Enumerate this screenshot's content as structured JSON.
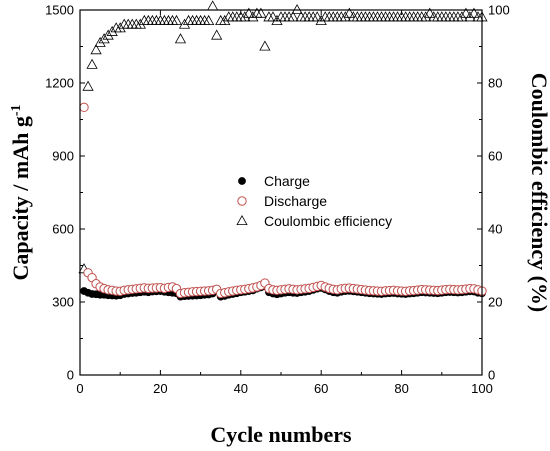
{
  "chart_data": {
    "type": "scatter",
    "title": "",
    "xlabel": "Cycle numbers",
    "ylabel_left": "Capacity / mAh g",
    "ylabel_left_superscript": "-1",
    "ylabel_right": "Coulombic efficiency (%)",
    "xlim": [
      0,
      100
    ],
    "ylim_left": [
      0,
      1500
    ],
    "ylim_right": [
      0,
      100
    ],
    "x_ticks": [
      "0",
      "20",
      "40",
      "60",
      "80",
      "100"
    ],
    "y_left_ticks": [
      "0",
      "300",
      "600",
      "900",
      "1200",
      "1500"
    ],
    "y_right_ticks": [
      "0",
      "20",
      "40",
      "60",
      "80",
      "100"
    ],
    "grid": false,
    "legend_position": "center",
    "series": [
      {
        "name": "Charge",
        "axis": "left",
        "marker": "filled-circle",
        "color": "#000000",
        "x": [
          1,
          2,
          3,
          4,
          5,
          6,
          7,
          8,
          9,
          10,
          11,
          12,
          13,
          14,
          15,
          16,
          17,
          18,
          19,
          20,
          21,
          22,
          23,
          24,
          25,
          26,
          27,
          28,
          29,
          30,
          31,
          32,
          33,
          34,
          35,
          36,
          37,
          38,
          39,
          40,
          41,
          42,
          43,
          44,
          45,
          46,
          47,
          48,
          49,
          50,
          51,
          52,
          53,
          54,
          55,
          56,
          57,
          58,
          59,
          60,
          61,
          62,
          63,
          64,
          65,
          66,
          67,
          68,
          69,
          70,
          71,
          72,
          73,
          74,
          75,
          76,
          77,
          78,
          79,
          80,
          81,
          82,
          83,
          84,
          85,
          86,
          87,
          88,
          89,
          90,
          91,
          92,
          93,
          94,
          95,
          96,
          97,
          98,
          99,
          100
        ],
        "values": [
          345,
          338,
          333,
          332,
          330,
          330,
          328,
          327,
          326,
          328,
          333,
          335,
          337,
          338,
          340,
          342,
          340,
          343,
          344,
          345,
          342,
          340,
          338,
          336,
          322,
          324,
          325,
          326,
          327,
          328,
          330,
          331,
          335,
          348,
          322,
          325,
          330,
          333,
          336,
          340,
          342,
          345,
          348,
          355,
          360,
          365,
          340,
          335,
          332,
          335,
          338,
          340,
          338,
          337,
          340,
          342,
          345,
          350,
          355,
          358,
          352,
          345,
          340,
          338,
          342,
          345,
          346,
          344,
          342,
          340,
          338,
          336,
          335,
          334,
          333,
          335,
          336,
          337,
          335,
          334,
          333,
          335,
          336,
          338,
          340,
          339,
          338,
          337,
          336,
          338,
          340,
          341,
          340,
          339,
          340,
          342,
          344,
          343,
          338,
          336
        ]
      },
      {
        "name": "Discharge",
        "axis": "left",
        "marker": "open-circle",
        "color": "#c0504d",
        "x": [
          1,
          2,
          3,
          4,
          5,
          6,
          7,
          8,
          9,
          10,
          11,
          12,
          13,
          14,
          15,
          16,
          17,
          18,
          19,
          20,
          21,
          22,
          23,
          24,
          25,
          26,
          27,
          28,
          29,
          30,
          31,
          32,
          33,
          34,
          35,
          36,
          37,
          38,
          39,
          40,
          41,
          42,
          43,
          44,
          45,
          46,
          47,
          48,
          49,
          50,
          51,
          52,
          53,
          54,
          55,
          56,
          57,
          58,
          59,
          60,
          61,
          62,
          63,
          64,
          65,
          66,
          67,
          68,
          69,
          70,
          71,
          72,
          73,
          74,
          75,
          76,
          77,
          78,
          79,
          80,
          81,
          82,
          83,
          84,
          85,
          86,
          87,
          88,
          89,
          90,
          91,
          92,
          93,
          94,
          95,
          96,
          97,
          98,
          99,
          100
        ],
        "values": [
          1100,
          420,
          400,
          375,
          362,
          355,
          350,
          348,
          345,
          344,
          348,
          350,
          352,
          354,
          356,
          358,
          356,
          357,
          358,
          359,
          356,
          360,
          362,
          355,
          335,
          338,
          340,
          342,
          343,
          344,
          345,
          346,
          348,
          352,
          335,
          338,
          342,
          345,
          348,
          350,
          352,
          355,
          358,
          362,
          368,
          378,
          355,
          350,
          348,
          350,
          352,
          354,
          352,
          350,
          352,
          354,
          356,
          360,
          364,
          368,
          362,
          356,
          352,
          350,
          354,
          356,
          357,
          355,
          353,
          351,
          349,
          347,
          346,
          345,
          344,
          346,
          347,
          348,
          346,
          345,
          344,
          346,
          347,
          349,
          351,
          350,
          349,
          348,
          347,
          349,
          351,
          352,
          351,
          350,
          351,
          353,
          355,
          354,
          350,
          345
        ]
      },
      {
        "name": "Coulombic efficiency",
        "axis": "right",
        "marker": "open-triangle",
        "color": "#000000",
        "x": [
          1,
          2,
          3,
          4,
          5,
          6,
          7,
          8,
          9,
          10,
          11,
          12,
          13,
          14,
          15,
          16,
          17,
          18,
          19,
          20,
          21,
          22,
          23,
          24,
          25,
          26,
          27,
          28,
          29,
          30,
          31,
          32,
          33,
          34,
          35,
          36,
          37,
          38,
          39,
          40,
          41,
          42,
          43,
          44,
          45,
          46,
          47,
          48,
          49,
          50,
          51,
          52,
          53,
          54,
          55,
          56,
          57,
          58,
          59,
          60,
          61,
          62,
          63,
          64,
          65,
          66,
          67,
          68,
          69,
          70,
          71,
          72,
          73,
          74,
          75,
          76,
          77,
          78,
          79,
          80,
          81,
          82,
          83,
          84,
          85,
          86,
          87,
          88,
          89,
          90,
          91,
          92,
          93,
          94,
          95,
          96,
          97,
          98,
          99,
          100
        ],
        "values": [
          29,
          79,
          85,
          89,
          91,
          92,
          93,
          94,
          95,
          95,
          96,
          96,
          96,
          96,
          96,
          97,
          97,
          97,
          97,
          97,
          97,
          97,
          97,
          97,
          92,
          96,
          97,
          97,
          97,
          97,
          97,
          97,
          101,
          93,
          97,
          97,
          98,
          98,
          98,
          98,
          98,
          99,
          98,
          99,
          99,
          90,
          98,
          98,
          97,
          98,
          98,
          98,
          98,
          100,
          98,
          98,
          98,
          98,
          98,
          97,
          98,
          98,
          98,
          98,
          98,
          98,
          99,
          98,
          98,
          98,
          98,
          98,
          98,
          98,
          98,
          98,
          98,
          98,
          98,
          98,
          98,
          98,
          98,
          98,
          98,
          98,
          99,
          98,
          98,
          98,
          98,
          98,
          98,
          98,
          98,
          99,
          98,
          99,
          98,
          98
        ]
      }
    ]
  }
}
